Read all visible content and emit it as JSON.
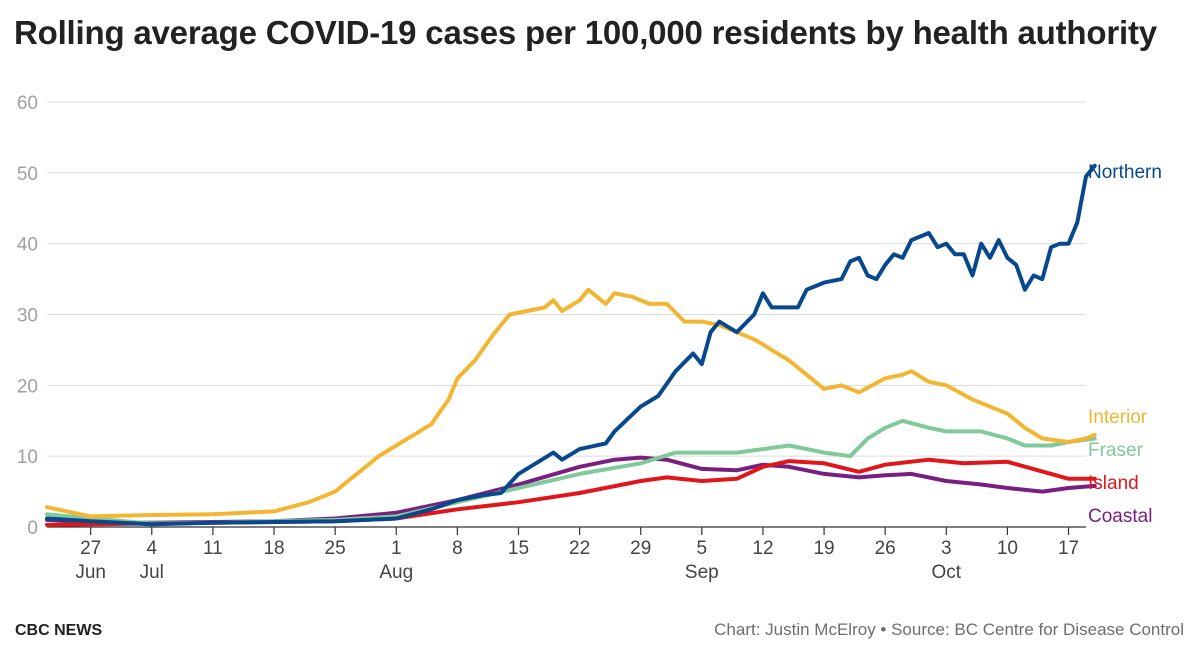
{
  "chart_data": {
    "type": "line",
    "title": "Rolling average COVID-19 cases per 100,000 residents by health authority",
    "xlabel": "",
    "ylabel": "",
    "ylim": [
      0,
      60
    ],
    "yticks": [
      "0",
      "10",
      "20",
      "30",
      "40",
      "50",
      "60"
    ],
    "grid": true,
    "legend": "direct-labels-right",
    "x_start": "2020-06-22",
    "x_end": "2020-10-19",
    "x_ticks": [
      {
        "date": "2020-06-27",
        "day": "27",
        "month": "Jun"
      },
      {
        "date": "2020-07-04",
        "day": "4",
        "month": "Jul"
      },
      {
        "date": "2020-07-11",
        "day": "11",
        "month": ""
      },
      {
        "date": "2020-07-18",
        "day": "18",
        "month": ""
      },
      {
        "date": "2020-07-25",
        "day": "25",
        "month": ""
      },
      {
        "date": "2020-08-01",
        "day": "1",
        "month": "Aug"
      },
      {
        "date": "2020-08-08",
        "day": "8",
        "month": ""
      },
      {
        "date": "2020-08-15",
        "day": "15",
        "month": ""
      },
      {
        "date": "2020-08-22",
        "day": "22",
        "month": ""
      },
      {
        "date": "2020-08-29",
        "day": "29",
        "month": ""
      },
      {
        "date": "2020-09-05",
        "day": "5",
        "month": "Sep"
      },
      {
        "date": "2020-09-12",
        "day": "12",
        "month": ""
      },
      {
        "date": "2020-09-19",
        "day": "19",
        "month": ""
      },
      {
        "date": "2020-09-26",
        "day": "26",
        "month": ""
      },
      {
        "date": "2020-10-03",
        "day": "3",
        "month": "Oct"
      },
      {
        "date": "2020-10-10",
        "day": "10",
        "month": ""
      },
      {
        "date": "2020-10-17",
        "day": "17",
        "month": ""
      }
    ],
    "series": [
      {
        "name": "Northern",
        "color": "#08488c",
        "points": [
          [
            "2020-06-22",
            1.2
          ],
          [
            "2020-06-27",
            0.8
          ],
          [
            "2020-07-04",
            0.4
          ],
          [
            "2020-07-11",
            0.6
          ],
          [
            "2020-07-18",
            0.7
          ],
          [
            "2020-07-25",
            0.8
          ],
          [
            "2020-08-01",
            1.2
          ],
          [
            "2020-08-05",
            2.5
          ],
          [
            "2020-08-08",
            3.8
          ],
          [
            "2020-08-11",
            4.5
          ],
          [
            "2020-08-13",
            4.8
          ],
          [
            "2020-08-15",
            7.5
          ],
          [
            "2020-08-17",
            9.0
          ],
          [
            "2020-08-19",
            10.5
          ],
          [
            "2020-08-20",
            9.5
          ],
          [
            "2020-08-22",
            11.0
          ],
          [
            "2020-08-25",
            11.8
          ],
          [
            "2020-08-26",
            13.5
          ],
          [
            "2020-08-29",
            17.0
          ],
          [
            "2020-08-31",
            18.5
          ],
          [
            "2020-09-02",
            22.0
          ],
          [
            "2020-09-04",
            24.5
          ],
          [
            "2020-09-05",
            23.0
          ],
          [
            "2020-09-06",
            27.5
          ],
          [
            "2020-09-07",
            29.0
          ],
          [
            "2020-09-09",
            27.5
          ],
          [
            "2020-09-11",
            30.0
          ],
          [
            "2020-09-12",
            33.0
          ],
          [
            "2020-09-13",
            31.0
          ],
          [
            "2020-09-16",
            31.0
          ],
          [
            "2020-09-17",
            33.5
          ],
          [
            "2020-09-19",
            34.5
          ],
          [
            "2020-09-21",
            35.0
          ],
          [
            "2020-09-22",
            37.5
          ],
          [
            "2020-09-23",
            38.0
          ],
          [
            "2020-09-24",
            35.5
          ],
          [
            "2020-09-25",
            35.0
          ],
          [
            "2020-09-26",
            37.0
          ],
          [
            "2020-09-27",
            38.5
          ],
          [
            "2020-09-28",
            38.0
          ],
          [
            "2020-09-29",
            40.5
          ],
          [
            "2020-10-01",
            41.5
          ],
          [
            "2020-10-02",
            39.5
          ],
          [
            "2020-10-03",
            40.0
          ],
          [
            "2020-10-04",
            38.5
          ],
          [
            "2020-10-05",
            38.5
          ],
          [
            "2020-10-06",
            35.5
          ],
          [
            "2020-10-07",
            40.0
          ],
          [
            "2020-10-08",
            38.0
          ],
          [
            "2020-10-09",
            40.5
          ],
          [
            "2020-10-10",
            38.0
          ],
          [
            "2020-10-11",
            37.0
          ],
          [
            "2020-10-12",
            33.5
          ],
          [
            "2020-10-13",
            35.5
          ],
          [
            "2020-10-14",
            35.0
          ],
          [
            "2020-10-15",
            39.5
          ],
          [
            "2020-10-16",
            40.0
          ],
          [
            "2020-10-17",
            40.0
          ],
          [
            "2020-10-18",
            43.0
          ],
          [
            "2020-10-19",
            49.5
          ],
          [
            "2020-10-20",
            51.0
          ]
        ]
      },
      {
        "name": "Interior",
        "color": "#f2b632",
        "points": [
          [
            "2020-06-22",
            2.8
          ],
          [
            "2020-06-27",
            1.5
          ],
          [
            "2020-07-04",
            1.7
          ],
          [
            "2020-07-11",
            1.8
          ],
          [
            "2020-07-18",
            2.2
          ],
          [
            "2020-07-22",
            3.5
          ],
          [
            "2020-07-25",
            5.0
          ],
          [
            "2020-07-28",
            8.0
          ],
          [
            "2020-07-30",
            10.0
          ],
          [
            "2020-08-01",
            11.5
          ],
          [
            "2020-08-03",
            13.0
          ],
          [
            "2020-08-05",
            14.5
          ],
          [
            "2020-08-07",
            18.0
          ],
          [
            "2020-08-08",
            21.0
          ],
          [
            "2020-08-10",
            23.5
          ],
          [
            "2020-08-12",
            27.0
          ],
          [
            "2020-08-14",
            30.0
          ],
          [
            "2020-08-16",
            30.5
          ],
          [
            "2020-08-18",
            31.0
          ],
          [
            "2020-08-19",
            32.0
          ],
          [
            "2020-08-20",
            30.5
          ],
          [
            "2020-08-22",
            32.0
          ],
          [
            "2020-08-23",
            33.5
          ],
          [
            "2020-08-25",
            31.5
          ],
          [
            "2020-08-26",
            33.0
          ],
          [
            "2020-08-28",
            32.5
          ],
          [
            "2020-08-30",
            31.5
          ],
          [
            "2020-09-01",
            31.5
          ],
          [
            "2020-09-03",
            29.0
          ],
          [
            "2020-09-05",
            29.0
          ],
          [
            "2020-09-07",
            28.5
          ],
          [
            "2020-09-09",
            27.5
          ],
          [
            "2020-09-11",
            26.5
          ],
          [
            "2020-09-13",
            25.0
          ],
          [
            "2020-09-15",
            23.5
          ],
          [
            "2020-09-17",
            21.5
          ],
          [
            "2020-09-19",
            19.5
          ],
          [
            "2020-09-21",
            20.0
          ],
          [
            "2020-09-23",
            19.0
          ],
          [
            "2020-09-26",
            21.0
          ],
          [
            "2020-09-28",
            21.5
          ],
          [
            "2020-09-29",
            22.0
          ],
          [
            "2020-10-01",
            20.5
          ],
          [
            "2020-10-03",
            20.0
          ],
          [
            "2020-10-06",
            18.0
          ],
          [
            "2020-10-08",
            17.0
          ],
          [
            "2020-10-10",
            16.0
          ],
          [
            "2020-10-12",
            14.0
          ],
          [
            "2020-10-14",
            12.5
          ],
          [
            "2020-10-17",
            12.0
          ],
          [
            "2020-10-19",
            12.5
          ],
          [
            "2020-10-20",
            13.0
          ]
        ]
      },
      {
        "name": "Fraser",
        "color": "#80c99a",
        "points": [
          [
            "2020-06-22",
            1.8
          ],
          [
            "2020-06-27",
            1.2
          ],
          [
            "2020-07-04",
            0.5
          ],
          [
            "2020-07-11",
            0.6
          ],
          [
            "2020-07-18",
            0.8
          ],
          [
            "2020-07-25",
            1.0
          ],
          [
            "2020-08-01",
            1.5
          ],
          [
            "2020-08-08",
            3.5
          ],
          [
            "2020-08-15",
            5.5
          ],
          [
            "2020-08-22",
            7.5
          ],
          [
            "2020-08-29",
            9.0
          ],
          [
            "2020-09-02",
            10.5
          ],
          [
            "2020-09-05",
            10.5
          ],
          [
            "2020-09-09",
            10.5
          ],
          [
            "2020-09-12",
            11.0
          ],
          [
            "2020-09-15",
            11.5
          ],
          [
            "2020-09-19",
            10.5
          ],
          [
            "2020-09-22",
            10.0
          ],
          [
            "2020-09-24",
            12.5
          ],
          [
            "2020-09-26",
            14.0
          ],
          [
            "2020-09-28",
            15.0
          ],
          [
            "2020-10-01",
            14.0
          ],
          [
            "2020-10-03",
            13.5
          ],
          [
            "2020-10-07",
            13.5
          ],
          [
            "2020-10-10",
            12.5
          ],
          [
            "2020-10-12",
            11.5
          ],
          [
            "2020-10-15",
            11.5
          ],
          [
            "2020-10-17",
            12.0
          ],
          [
            "2020-10-20",
            12.5
          ]
        ]
      },
      {
        "name": "Island",
        "color": "#e0161b",
        "points": [
          [
            "2020-06-22",
            0.3
          ],
          [
            "2020-06-27",
            0.4
          ],
          [
            "2020-07-04",
            0.5
          ],
          [
            "2020-07-11",
            0.6
          ],
          [
            "2020-07-18",
            0.7
          ],
          [
            "2020-07-25",
            0.8
          ],
          [
            "2020-08-01",
            1.2
          ],
          [
            "2020-08-08",
            2.5
          ],
          [
            "2020-08-15",
            3.5
          ],
          [
            "2020-08-22",
            4.8
          ],
          [
            "2020-08-29",
            6.5
          ],
          [
            "2020-09-01",
            7.0
          ],
          [
            "2020-09-05",
            6.5
          ],
          [
            "2020-09-09",
            6.8
          ],
          [
            "2020-09-12",
            8.5
          ],
          [
            "2020-09-15",
            9.3
          ],
          [
            "2020-09-19",
            9.0
          ],
          [
            "2020-09-23",
            7.8
          ],
          [
            "2020-09-26",
            8.8
          ],
          [
            "2020-10-01",
            9.5
          ],
          [
            "2020-10-05",
            9.0
          ],
          [
            "2020-10-10",
            9.2
          ],
          [
            "2020-10-15",
            7.5
          ],
          [
            "2020-10-17",
            6.8
          ],
          [
            "2020-10-20",
            6.8
          ]
        ]
      },
      {
        "name": "Coastal",
        "color": "#7a1f82",
        "points": [
          [
            "2020-06-22",
            1.0
          ],
          [
            "2020-06-27",
            0.7
          ],
          [
            "2020-07-04",
            0.6
          ],
          [
            "2020-07-11",
            0.7
          ],
          [
            "2020-07-18",
            0.8
          ],
          [
            "2020-07-25",
            1.2
          ],
          [
            "2020-08-01",
            2.0
          ],
          [
            "2020-08-08",
            3.8
          ],
          [
            "2020-08-15",
            6.0
          ],
          [
            "2020-08-22",
            8.5
          ],
          [
            "2020-08-26",
            9.5
          ],
          [
            "2020-08-29",
            9.8
          ],
          [
            "2020-09-01",
            9.5
          ],
          [
            "2020-09-05",
            8.2
          ],
          [
            "2020-09-09",
            8.0
          ],
          [
            "2020-09-12",
            8.8
          ],
          [
            "2020-09-15",
            8.5
          ],
          [
            "2020-09-19",
            7.5
          ],
          [
            "2020-09-23",
            7.0
          ],
          [
            "2020-09-26",
            7.3
          ],
          [
            "2020-09-29",
            7.5
          ],
          [
            "2020-10-03",
            6.5
          ],
          [
            "2020-10-07",
            6.0
          ],
          [
            "2020-10-10",
            5.5
          ],
          [
            "2020-10-14",
            5.0
          ],
          [
            "2020-10-17",
            5.5
          ],
          [
            "2020-10-20",
            5.8
          ]
        ]
      }
    ],
    "credit": "Chart: Justin McElroy • Source: BC Centre for Disease Control",
    "brand": "CBC NEWS"
  }
}
